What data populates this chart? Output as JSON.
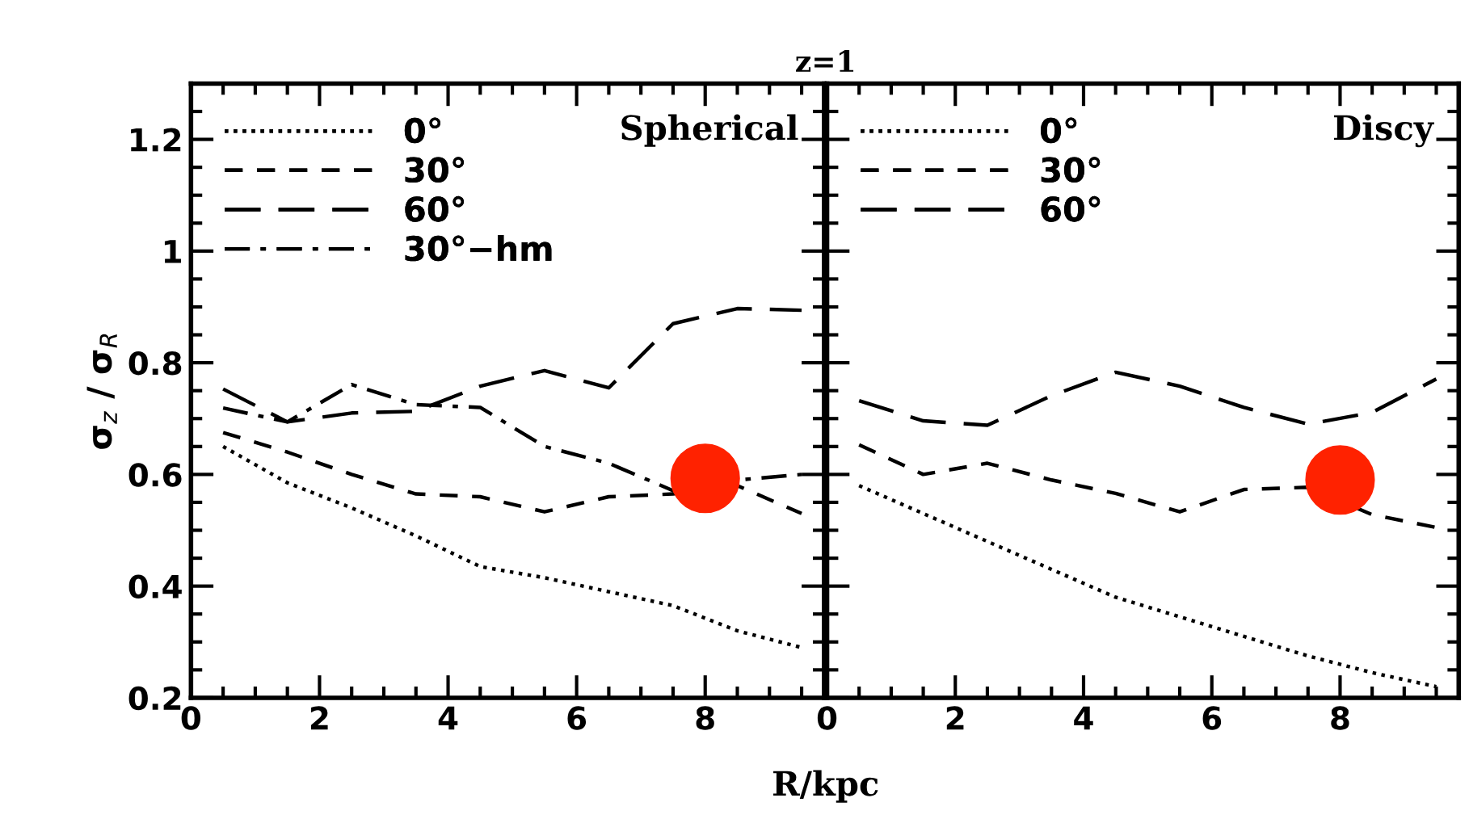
{
  "chart_data": [
    {
      "type": "line",
      "title": "z=1",
      "xlabel": "R/kpc",
      "ylabel": "σ$_{z}$ / σ$_{R}$",
      "annotations": [
        "Spherical"
      ],
      "xlim": [
        0,
        9.85
      ],
      "xticks": [
        0,
        2,
        4,
        6,
        8
      ],
      "ylim": [
        0.2,
        1.3
      ],
      "yticks": [
        0.2,
        0.4,
        0.6,
        0.8,
        {
          "value": 1.0,
          "label": "1"
        },
        1.2
      ],
      "legend": "top left",
      "series": [
        {
          "name": "0°",
          "color": "#000000",
          "line_style": "dotted",
          "x": [
            0.5,
            1.5,
            2.5,
            3.5,
            4.5,
            5.5,
            6.5,
            7.5,
            8.5,
            9.5
          ],
          "values": [
            0.65,
            0.585,
            0.54,
            0.49,
            0.435,
            0.415,
            0.39,
            0.365,
            0.32,
            0.29
          ]
        },
        {
          "name": "30°",
          "color": "#000000",
          "line_style": "dashed",
          "x": [
            0.5,
            1.5,
            2.5,
            3.5,
            4.5,
            5.5,
            6.5,
            7.5,
            8.5,
            9.5
          ],
          "values": [
            0.675,
            0.64,
            0.6,
            0.565,
            0.56,
            0.533,
            0.56,
            0.565,
            0.58,
            0.53
          ]
        },
        {
          "name": "60°",
          "color": "#000000",
          "line_style": "longdashed",
          "x": [
            0.5,
            1.5,
            2.5,
            3.5,
            4.5,
            5.5,
            6.5,
            7.5,
            8.5,
            9.5
          ],
          "values": [
            0.753,
            0.694,
            0.71,
            0.713,
            0.758,
            0.786,
            0.755,
            0.87,
            0.897,
            0.894
          ]
        },
        {
          "name": "30°−hm",
          "color": "#000000",
          "line_style": "dashdot",
          "x": [
            0.5,
            1.5,
            2.5,
            3.5,
            4.5,
            5.5,
            6.5,
            7.5,
            8.5,
            9.5
          ],
          "values": [
            0.719,
            0.694,
            0.761,
            0.725,
            0.72,
            0.65,
            0.62,
            0.571,
            0.59,
            0.6
          ]
        },
        {
          "type": "scatter",
          "color": "#ff2200",
          "marker": "circle",
          "x": [
            8
          ],
          "values": [
            0.593
          ]
        }
      ]
    },
    {
      "type": "line",
      "annotations": [
        "Discy"
      ],
      "xlim": [
        0,
        9.85
      ],
      "xticks": [
        0,
        2,
        4,
        6,
        8
      ],
      "ylim": [
        0.2,
        1.3
      ],
      "yticks": [
        0.2,
        0.4,
        0.6,
        0.8,
        1,
        1.2
      ],
      "tick_labels": "x",
      "legend": "top left",
      "series": [
        {
          "name": "0°",
          "color": "#000000",
          "line_style": "dotted",
          "x": [
            0.5,
            1.5,
            2.5,
            3.5,
            4.5,
            5.5,
            6.5,
            7.5,
            8.5,
            9.5
          ],
          "values": [
            0.58,
            0.53,
            0.48,
            0.43,
            0.38,
            0.345,
            0.31,
            0.275,
            0.245,
            0.22
          ]
        },
        {
          "name": "30°",
          "color": "#000000",
          "line_style": "dashed",
          "x": [
            0.5,
            1.5,
            2.5,
            3.5,
            4.5,
            5.5,
            6.5,
            7.5,
            8.5,
            9.5
          ],
          "values": [
            0.653,
            0.6,
            0.62,
            0.59,
            0.566,
            0.533,
            0.573,
            0.577,
            0.528,
            0.505
          ]
        },
        {
          "name": "60°",
          "color": "#000000",
          "line_style": "longdashed",
          "x": [
            0.5,
            1.5,
            2.5,
            3.5,
            4.5,
            5.5,
            6.5,
            7.5,
            8.5,
            9.5
          ],
          "values": [
            0.732,
            0.696,
            0.688,
            0.741,
            0.783,
            0.758,
            0.72,
            0.69,
            0.711,
            0.771
          ]
        },
        {
          "type": "scatter",
          "color": "#ff2200",
          "marker": "circle",
          "x": [
            8
          ],
          "values": [
            0.59
          ]
        }
      ]
    }
  ]
}
